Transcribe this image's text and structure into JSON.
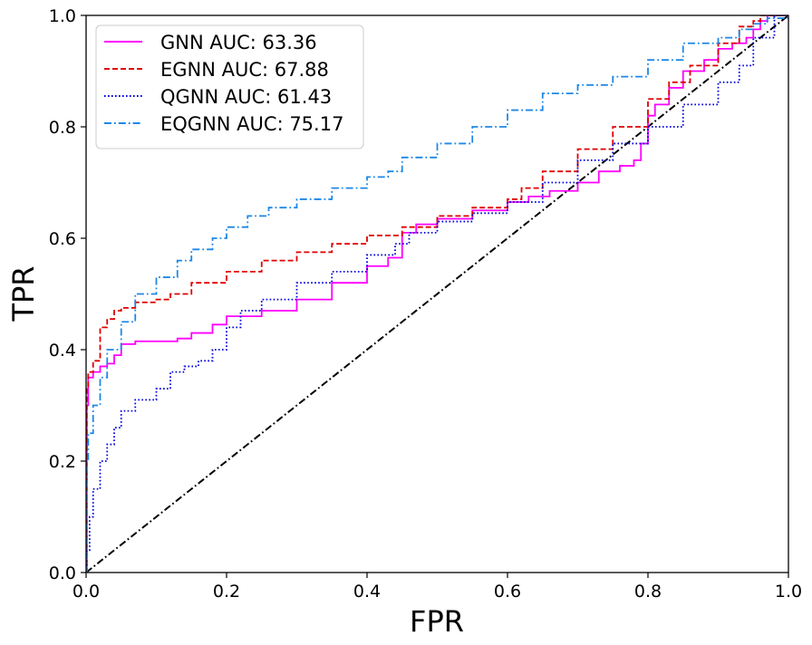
{
  "chart_data": {
    "type": "line",
    "title": "",
    "xlabel": "FPR",
    "ylabel": "TPR",
    "xlim": [
      0.0,
      1.0
    ],
    "ylim": [
      0.0,
      1.0
    ],
    "xticks": [
      "0.0",
      "0.2",
      "0.4",
      "0.6",
      "0.8",
      "1.0"
    ],
    "yticks": [
      "0.0",
      "0.2",
      "0.4",
      "0.6",
      "0.8",
      "1.0"
    ],
    "grid": false,
    "legend_position": "top-left",
    "series": [
      {
        "name": "GNN AUC: 63.36",
        "color": "#ff00ff",
        "dash": "solid",
        "x": [
          0,
          0.001,
          0.003,
          0.01,
          0.02,
          0.03,
          0.04,
          0.05,
          0.07,
          0.1,
          0.13,
          0.15,
          0.18,
          0.2,
          0.25,
          0.3,
          0.35,
          0.4,
          0.43,
          0.45,
          0.47,
          0.5,
          0.55,
          0.6,
          0.63,
          0.66,
          0.7,
          0.73,
          0.76,
          0.78,
          0.79,
          0.8,
          0.81,
          0.83,
          0.85,
          0.88,
          0.9,
          0.92,
          0.94,
          0.95,
          0.96,
          0.97,
          1.0
        ],
        "y": [
          0,
          0.3,
          0.35,
          0.36,
          0.37,
          0.375,
          0.39,
          0.41,
          0.415,
          0.415,
          0.42,
          0.43,
          0.445,
          0.46,
          0.47,
          0.49,
          0.52,
          0.55,
          0.565,
          0.61,
          0.625,
          0.635,
          0.65,
          0.665,
          0.675,
          0.685,
          0.7,
          0.72,
          0.73,
          0.74,
          0.77,
          0.82,
          0.84,
          0.87,
          0.9,
          0.92,
          0.94,
          0.95,
          0.96,
          0.975,
          0.99,
          1.0,
          1.0
        ]
      },
      {
        "name": "EGNN AUC: 67.88",
        "color": "#e00000",
        "dash": "dashed",
        "x": [
          0,
          0.001,
          0.003,
          0.01,
          0.02,
          0.03,
          0.04,
          0.05,
          0.07,
          0.1,
          0.12,
          0.15,
          0.2,
          0.25,
          0.3,
          0.35,
          0.4,
          0.45,
          0.5,
          0.55,
          0.6,
          0.62,
          0.65,
          0.7,
          0.75,
          0.8,
          0.83,
          0.86,
          0.9,
          0.93,
          0.95,
          0.96,
          1.0
        ],
        "y": [
          0,
          0.33,
          0.36,
          0.38,
          0.44,
          0.455,
          0.47,
          0.475,
          0.485,
          0.49,
          0.5,
          0.52,
          0.54,
          0.56,
          0.575,
          0.59,
          0.605,
          0.62,
          0.64,
          0.655,
          0.67,
          0.69,
          0.72,
          0.76,
          0.8,
          0.85,
          0.88,
          0.91,
          0.95,
          0.98,
          0.99,
          1.0,
          1.0
        ]
      },
      {
        "name": "QGNN AUC: 61.43",
        "color": "#0000dd",
        "dash": "dotted",
        "x": [
          0,
          0.001,
          0.005,
          0.01,
          0.02,
          0.03,
          0.04,
          0.05,
          0.07,
          0.1,
          0.12,
          0.14,
          0.16,
          0.18,
          0.2,
          0.22,
          0.25,
          0.3,
          0.35,
          0.4,
          0.44,
          0.46,
          0.5,
          0.55,
          0.6,
          0.65,
          0.7,
          0.75,
          0.8,
          0.85,
          0.9,
          0.93,
          0.95,
          0.98,
          1.0
        ],
        "y": [
          0,
          0.04,
          0.1,
          0.15,
          0.2,
          0.23,
          0.26,
          0.29,
          0.31,
          0.33,
          0.36,
          0.37,
          0.38,
          0.4,
          0.44,
          0.47,
          0.49,
          0.52,
          0.54,
          0.57,
          0.59,
          0.61,
          0.63,
          0.645,
          0.665,
          0.7,
          0.74,
          0.77,
          0.8,
          0.84,
          0.88,
          0.91,
          0.96,
          1.0,
          1.0
        ]
      },
      {
        "name": "EQGNN AUC: 75.17",
        "color": "#1e88e5",
        "dash": "dashdot",
        "x": [
          0,
          0.001,
          0.003,
          0.01,
          0.02,
          0.03,
          0.05,
          0.07,
          0.1,
          0.13,
          0.15,
          0.18,
          0.2,
          0.23,
          0.26,
          0.3,
          0.35,
          0.4,
          0.43,
          0.45,
          0.5,
          0.55,
          0.6,
          0.65,
          0.7,
          0.75,
          0.8,
          0.85,
          0.9,
          0.93,
          0.95,
          0.97,
          1.0
        ],
        "y": [
          0,
          0.2,
          0.25,
          0.3,
          0.35,
          0.4,
          0.45,
          0.5,
          0.53,
          0.56,
          0.58,
          0.6,
          0.62,
          0.64,
          0.655,
          0.67,
          0.69,
          0.71,
          0.72,
          0.745,
          0.77,
          0.8,
          0.83,
          0.86,
          0.875,
          0.89,
          0.92,
          0.95,
          0.96,
          0.975,
          0.985,
          0.995,
          1.0
        ]
      },
      {
        "name": "",
        "color": "#000000",
        "dash": "dashdot",
        "x": [
          0.0,
          1.0
        ],
        "y": [
          0.0,
          1.0
        ]
      }
    ]
  }
}
